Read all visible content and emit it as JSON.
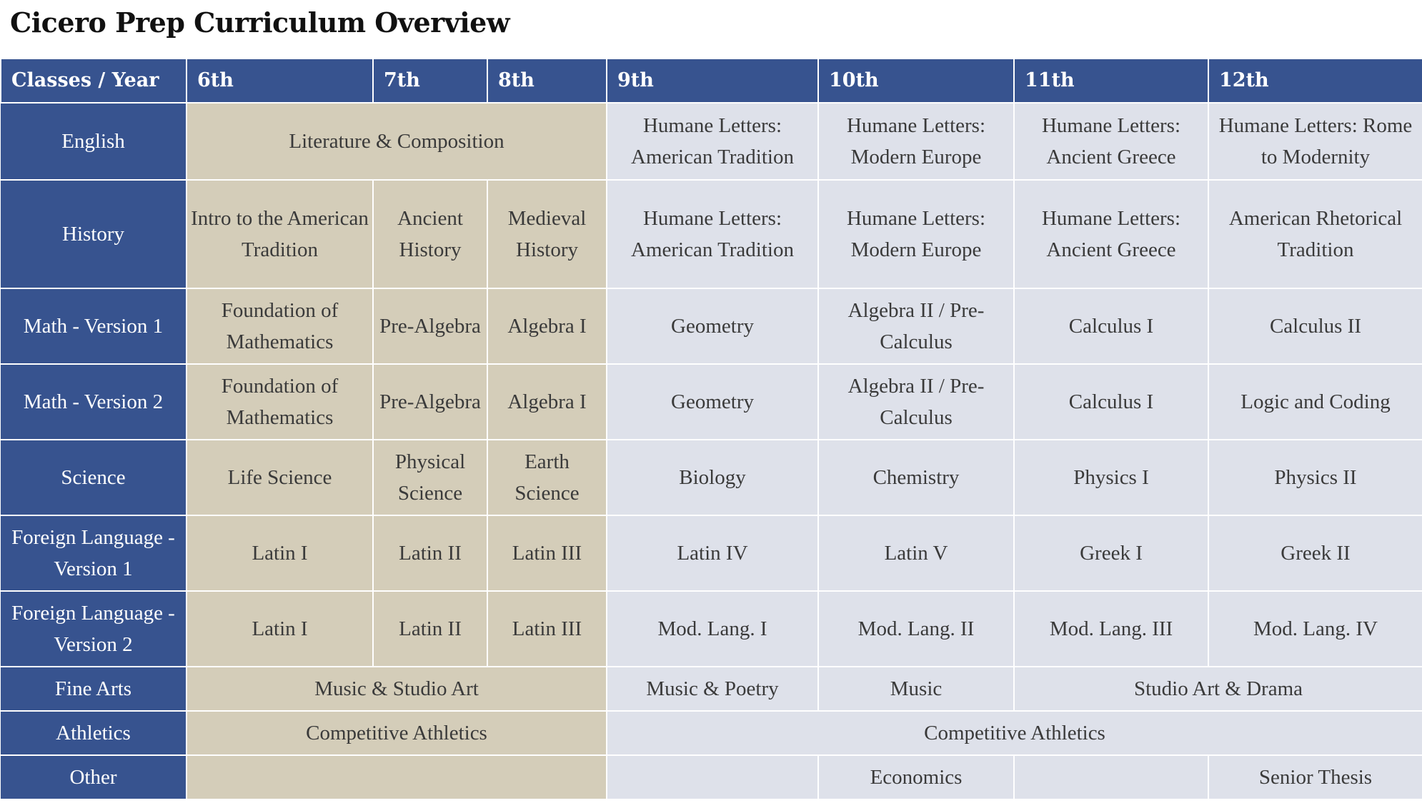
{
  "title": "Cicero Prep Curriculum Overview",
  "colors": {
    "header_blue": "#37538f",
    "middle_school_tan": "#d4cdb9",
    "high_school_gray": "#dee1ea"
  },
  "headers": {
    "corner": "Classes / Year",
    "years": [
      "6th",
      "7th",
      "8th",
      "9th",
      "10th",
      "11th",
      "12th"
    ]
  },
  "rows": {
    "english": {
      "label": "English",
      "ms": "Literature & Composition",
      "y9": "Humane Letters: American Tradition",
      "y10": "Humane Letters: Modern Europe",
      "y11": "Humane Letters: Ancient Greece",
      "y12": "Humane Letters: Rome to Modernity"
    },
    "history": {
      "label": "History",
      "y6": "Intro to the American Tradition",
      "y7": "Ancient History",
      "y8": "Medieval History",
      "y9": "Humane Letters: American Tradition",
      "y10": "Humane Letters: Modern Europe",
      "y11": "Humane Letters: Ancient Greece",
      "y12": "American Rhetorical Tradition"
    },
    "math1": {
      "label": "Math - Version 1",
      "y6": "Foundation of Mathematics",
      "y7": "Pre-Algebra",
      "y8": "Algebra I",
      "y9": "Geometry",
      "y10": "Algebra II / Pre-Calculus",
      "y11": "Calculus I",
      "y12": "Calculus II"
    },
    "math2": {
      "label": "Math - Version 2",
      "y6": "Foundation of Mathematics",
      "y7": "Pre-Algebra",
      "y8": "Algebra I",
      "y9": "Geometry",
      "y10": "Algebra II / Pre-Calculus",
      "y11": "Calculus I",
      "y12": "Logic and Coding"
    },
    "science": {
      "label": "Science",
      "y6": "Life Science",
      "y7": "Physical Science",
      "y8": "Earth Science",
      "y9": "Biology",
      "y10": "Chemistry",
      "y11": "Physics I",
      "y12": "Physics II"
    },
    "lang1": {
      "label": "Foreign Language - Version 1",
      "y6": "Latin I",
      "y7": "Latin II",
      "y8": "Latin III",
      "y9": "Latin IV",
      "y10": "Latin V",
      "y11": "Greek I",
      "y12": "Greek II"
    },
    "lang2": {
      "label": "Foreign Language - Version 2",
      "y6": "Latin I",
      "y7": "Latin II",
      "y8": "Latin III",
      "y9": "Mod. Lang. I",
      "y10": "Mod. Lang. II",
      "y11": "Mod. Lang. III",
      "y12": "Mod. Lang. IV"
    },
    "arts": {
      "label": "Fine Arts",
      "ms": "Music & Studio Art",
      "y9": "Music & Poetry",
      "y10": "Music",
      "y11_12": "Studio Art & Drama"
    },
    "athletics": {
      "label": "Athletics",
      "ms": "Competitive Athletics",
      "hs": "Competitive Athletics"
    },
    "other": {
      "label": "Other",
      "y10": "Economics",
      "y12": "Senior Thesis"
    }
  }
}
